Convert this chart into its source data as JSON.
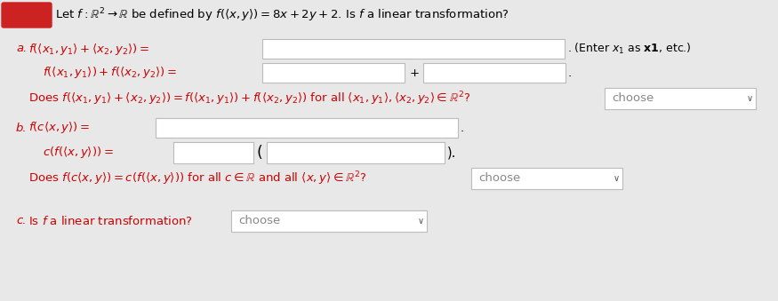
{
  "bg_color": "#e8e8e8",
  "title_text": "Let $f : \\mathbb{R}^2 \\rightarrow \\mathbb{R}$ be defined by $f(\\langle x, y\\rangle) = 8x + 2y + 2$. Is $f$ a linear transformation?",
  "line_a1_left": "$f(\\langle x_1, y_1\\rangle + \\langle x_2, y_2\\rangle) =$",
  "line_a1_note": "\\,(Enter $x_1$ as $\\mathbf{x1}$, etc.)",
  "line_a2_left": "$f(\\langle x_1, y_1\\rangle) + f(\\langle x_2, y_2\\rangle) =$",
  "line_a3": "Does $f(\\langle x_1, y_1\\rangle + \\langle x_2, y_2\\rangle) = f(\\langle x_1, y_1\\rangle) + f(\\langle x_2, y_2\\rangle)$ for all $\\langle x_1, y_1\\rangle, \\langle x_2, y_2\\rangle \\in \\mathbb{R}^2$?",
  "line_b1_left": "$f(c\\langle x, y\\rangle) =$",
  "line_b2_left": "$c(f(\\langle x, y\\rangle)) =$",
  "line_b3": "Does $f(c\\langle x, y\\rangle) = c(f(\\langle x, y\\rangle))$ for all $c \\in \\mathbb{R}$ and all $\\langle x, y\\rangle \\in \\mathbb{R}^2$?",
  "line_c1": "Is $f$ a linear transformation?",
  "choose_text": "choose",
  "text_color": "#cc0000",
  "black": "#000000",
  "gray_text": "#888888",
  "box_fc": "#ffffff",
  "box_ec": "#bbbbbb",
  "red_badge": "#cc2222"
}
